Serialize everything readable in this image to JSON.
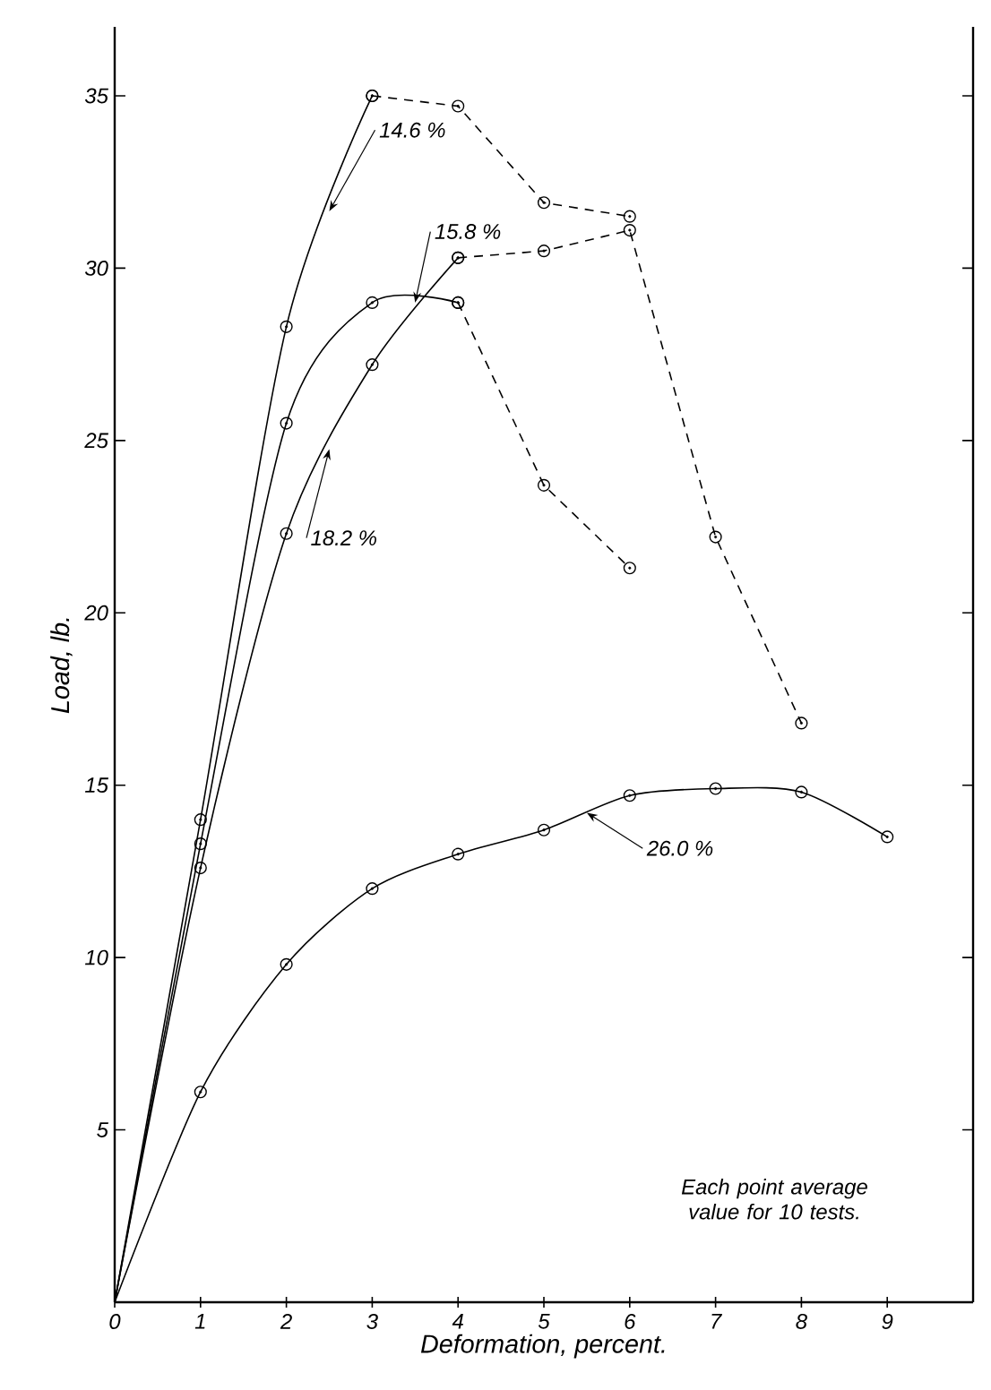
{
  "chart_data": {
    "type": "line",
    "xlabel": "Deformation, percent.",
    "ylabel": "Load, lb.",
    "xlim": [
      0,
      10
    ],
    "ylim": [
      0,
      37
    ],
    "xticks": [
      0,
      1,
      2,
      3,
      4,
      5,
      6,
      7,
      8,
      9
    ],
    "yticks": [
      {
        "value": 0,
        "label": null
      },
      5,
      10,
      15,
      20,
      25,
      30,
      35
    ],
    "marker": "circle",
    "annotations": [
      "Each point average value for 10 tests."
    ],
    "series": [
      {
        "name": "14.6 %",
        "color": "#000000",
        "line_style": "solid",
        "x": [
          0,
          1,
          2,
          3
        ],
        "values": [
          0,
          14.0,
          28.3,
          35.0
        ]
      },
      {
        "color": "#000000",
        "line_style": "dashed",
        "x": [
          3,
          4,
          5,
          6
        ],
        "values": [
          35.0,
          34.7,
          31.9,
          31.5
        ]
      },
      {
        "name": "15.8 %",
        "color": "#000000",
        "line_style": "solid",
        "x": [
          0,
          1,
          2,
          3,
          4
        ],
        "values": [
          0,
          13.3,
          25.5,
          29.0,
          29.0
        ]
      },
      {
        "color": "#000000",
        "line_style": "dashed",
        "x": [
          4,
          5,
          6
        ],
        "values": [
          29.0,
          23.7,
          21.3
        ]
      },
      {
        "name": "18.2 %",
        "color": "#000000",
        "line_style": "solid",
        "x": [
          0,
          1,
          2,
          3,
          4
        ],
        "values": [
          0,
          12.6,
          22.3,
          27.2,
          30.3
        ]
      },
      {
        "color": "#000000",
        "line_style": "dashed",
        "x": [
          4,
          5,
          6,
          7,
          8
        ],
        "values": [
          30.3,
          30.5,
          31.1,
          22.2,
          16.8
        ]
      },
      {
        "name": "26.0 %",
        "color": "#000000",
        "line_style": "solid",
        "x": [
          0,
          1,
          2,
          3,
          4,
          5,
          6,
          7,
          8,
          9
        ],
        "values": [
          0,
          6.1,
          9.8,
          12.0,
          13.0,
          13.7,
          14.7,
          14.9,
          14.8,
          13.5
        ]
      }
    ]
  }
}
